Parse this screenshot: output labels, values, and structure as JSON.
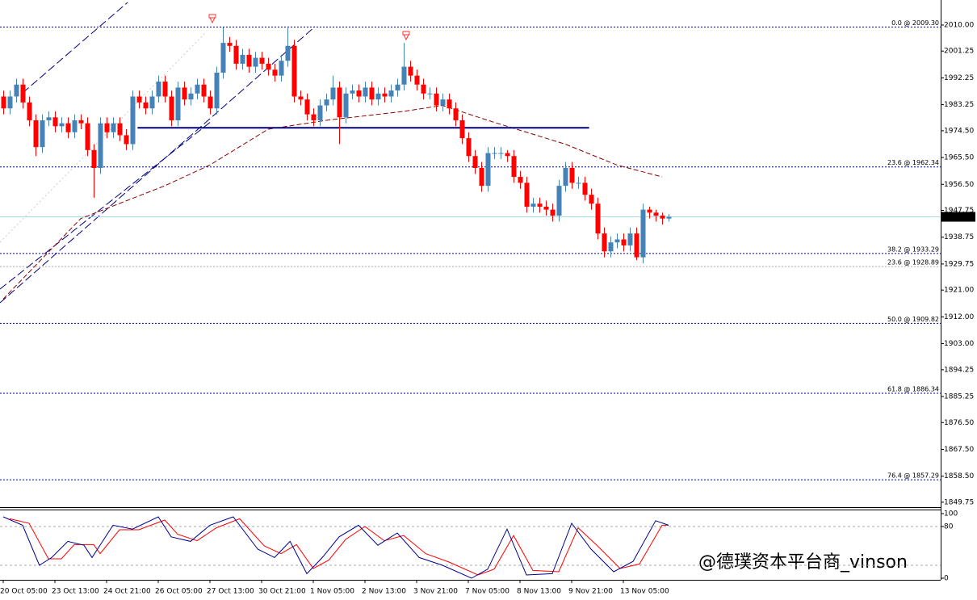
{
  "chart_data": {
    "type": "candlestick",
    "categories": [
      "20 Oct 05:00",
      null,
      null,
      null,
      null,
      null,
      null,
      null,
      "23 Oct 13:00",
      null,
      null,
      null,
      null,
      null,
      null,
      null,
      "24 Oct 21:00",
      null,
      null,
      null,
      null,
      null,
      null,
      null,
      "26 Oct 05:00",
      null,
      null,
      null,
      null,
      null,
      null,
      null,
      "27 Oct 13:00",
      null,
      null,
      null,
      null,
      null,
      null,
      null,
      "30 Oct 21:00",
      null,
      null,
      null,
      null,
      null,
      null,
      null,
      "1 Nov 05:00",
      null,
      null,
      null,
      null,
      null,
      null,
      null,
      "2 Nov 13:00",
      null,
      null,
      null,
      null,
      null,
      null,
      null,
      "3 Nov 21:00",
      null,
      null,
      null,
      null,
      null,
      null,
      null,
      "7 Nov 05:00",
      null,
      null,
      null,
      null,
      null,
      null,
      null,
      "8 Nov 13:00",
      null,
      null,
      null,
      null,
      null,
      null,
      null,
      "9 Nov 21:00",
      null,
      null,
      null,
      null,
      null,
      null,
      null,
      "13 Nov 05:00",
      null,
      null,
      null,
      null,
      null,
      null,
      null
    ],
    "open": [
      1986,
      1982,
      1986,
      1990,
      1984,
      1978,
      1969,
      1978,
      1979,
      1976,
      1977,
      1974,
      1978,
      1977,
      1968,
      1962,
      1977,
      1974,
      1977,
      1973,
      1970,
      1986,
      1984,
      1982,
      1986,
      1991,
      1986,
      1978,
      1989,
      1985,
      1987,
      1990,
      1986,
      1982,
      1994,
      2004,
      2003,
      1997,
      2000,
      1996,
      1999,
      1997,
      1995,
      1993,
      1998,
      2003,
      1986,
      1985,
      1980,
      1978,
      1983,
      1985,
      1989,
      1979,
      1987,
      1988,
      1986,
      1989,
      1985,
      1987,
      1986,
      1988,
      1990,
      1996,
      1993,
      1990,
      1987,
      1987,
      1983,
      1985,
      1982,
      1978,
      1972,
      1966,
      1962,
      1956,
      1967,
      1967,
      1967,
      1966,
      1959,
      1957,
      1949,
      1950,
      1949,
      1948,
      1946,
      1956,
      1962,
      1957,
      1957,
      1953,
      1950,
      1940,
      1934,
      1937,
      1938,
      1936,
      1940,
      1932,
      1948,
      1947,
      1946,
      1945
    ],
    "high": [
      1988,
      1988,
      1992,
      1992,
      1986,
      1980,
      1980,
      1981,
      1981,
      1979,
      1979,
      1980,
      1980,
      1979,
      1970,
      1979,
      1979,
      1979,
      1979,
      1975,
      1988,
      1988,
      1986,
      1988,
      1993,
      1993,
      1988,
      1991,
      1991,
      1989,
      1992,
      1992,
      1988,
      1996,
      2009.3,
      2006,
      2005,
      2002,
      2002,
      2001,
      2001,
      1999,
      1997,
      2000,
      2009,
      2005,
      1988,
      1987,
      1982,
      1985,
      1987,
      1993,
      1991,
      1989,
      1990,
      1990,
      1991,
      1991,
      1989,
      1989,
      1990,
      1992,
      2004,
      1998,
      1995,
      1992,
      1989,
      1989,
      1987,
      1987,
      1984,
      1980,
      1974,
      1968,
      1964,
      1969,
      1969,
      1969,
      1968,
      1968,
      1961,
      1959,
      1952,
      1952,
      1951,
      1950,
      1958,
      1964,
      1964,
      1959,
      1959,
      1955,
      1952,
      1942,
      1939,
      1940,
      1940,
      1942,
      1942,
      1950,
      1949,
      1948,
      1947,
      1946.5
    ],
    "low": [
      1980,
      1980,
      1984,
      1982,
      1976,
      1966,
      1967,
      1976,
      1974,
      1974,
      1972,
      1972,
      1975,
      1966,
      1952,
      1960,
      1972,
      1972,
      1971,
      1968,
      1968,
      1982,
      1980,
      1980,
      1984,
      1984,
      1976,
      1976,
      1983,
      1983,
      1985,
      1984,
      1980,
      1980,
      1992,
      2001,
      1995,
      1995,
      1994,
      1994,
      1995,
      1993,
      1991,
      1991,
      1996,
      1984,
      1983,
      1978,
      1976,
      1976,
      1981,
      1983,
      1970,
      1977,
      1985,
      1984,
      1984,
      1983,
      1983,
      1984,
      1984,
      1986,
      1988,
      1991,
      1988,
      1985,
      1985,
      1981,
      1981,
      1980,
      1976,
      1970,
      1964,
      1960,
      1954,
      1954,
      1965,
      1965,
      1964,
      1957,
      1955,
      1947,
      1947,
      1947,
      1946,
      1944,
      1944,
      1954,
      1955,
      1955,
      1951,
      1948,
      1938,
      1932,
      1932,
      1935,
      1934,
      1934,
      1931,
      1930,
      1945,
      1944,
      1943,
      1944
    ],
    "close": [
      1982,
      1986,
      1990,
      1984,
      1978,
      1969,
      1978,
      1979,
      1976,
      1977,
      1974,
      1978,
      1977,
      1968,
      1962,
      1977,
      1974,
      1977,
      1973,
      1970,
      1986,
      1984,
      1982,
      1986,
      1991,
      1986,
      1978,
      1989,
      1985,
      1987,
      1990,
      1986,
      1982,
      1994,
      2004,
      2003,
      1997,
      2000,
      1996,
      1999,
      1997,
      1995,
      1993,
      1998,
      2003,
      1986,
      1985,
      1980,
      1978,
      1983,
      1985,
      1989,
      1979,
      1987,
      1988,
      1986,
      1989,
      1985,
      1987,
      1986,
      1988,
      1990,
      1996,
      1993,
      1990,
      1987,
      1987,
      1983,
      1985,
      1982,
      1978,
      1972,
      1966,
      1962,
      1956,
      1967,
      1967,
      1967,
      1966,
      1959,
      1957,
      1949,
      1950,
      1949,
      1948,
      1946,
      1956,
      1962,
      1957,
      1957,
      1953,
      1950,
      1940,
      1934,
      1937,
      1938,
      1936,
      1940,
      1932,
      1948,
      1947,
      1946,
      1945,
      1945.59
    ],
    "up_color": "#4682b4",
    "down_color": "#ff0000",
    "ylim": [
      1848.1,
      2018.4
    ],
    "yticks": [
      {
        "value": 2010,
        "label": "2010.00"
      },
      {
        "value": 2001.25,
        "label": "2001.25"
      },
      {
        "value": 1992.25,
        "label": "1992.25"
      },
      {
        "value": 1983.25,
        "label": "1983.25"
      },
      {
        "value": 1974.5,
        "label": "1974.50"
      },
      {
        "value": 1965.5,
        "label": "1965.50"
      },
      {
        "value": 1956.5,
        "label": "1956.50"
      },
      {
        "value": 1947.75,
        "label": "1947.75"
      },
      {
        "value": 1938.75,
        "label": "1938.75"
      },
      {
        "value": 1929.75,
        "label": "1929.75"
      },
      {
        "value": 1921,
        "label": "1921.00"
      },
      {
        "value": 1912,
        "label": "1912.00"
      },
      {
        "value": 1903,
        "label": "1903.00"
      },
      {
        "value": 1894.25,
        "label": "1894.25"
      },
      {
        "value": 1885.25,
        "label": "1885.25"
      },
      {
        "value": 1876.5,
        "label": "1876.50"
      },
      {
        "value": 1867.5,
        "label": "1867.50"
      },
      {
        "value": 1858.5,
        "label": "1858.50"
      },
      {
        "value": 1849.75,
        "label": "1849.75"
      }
    ],
    "ma": {
      "color": "#8b0000",
      "x": [
        0,
        12,
        25,
        32,
        41,
        50,
        62,
        68,
        75,
        87,
        95,
        102
      ],
      "values": [
        1918,
        1945,
        1956,
        1963,
        1975,
        1978,
        1981,
        1983,
        1978,
        1970,
        1963,
        1959
      ]
    },
    "fib_levels": [
      {
        "label": "0.0 @ 2009.30",
        "value": 2009.3,
        "color": "#00008b"
      },
      {
        "label": "23.6 @ 1962.34",
        "value": 1962.34,
        "color": "#00008b"
      },
      {
        "label": "38.2 @ 1933.29",
        "value": 1933.29,
        "color": "#00008b"
      },
      {
        "label": "23.6 @ 1928.89",
        "value": 1928.89,
        "color": "#a9a9a9"
      },
      {
        "label": "50.0 @ 1909.82",
        "value": 1909.82,
        "color": "#00008b"
      },
      {
        "label": "61.8 @ 1886.34",
        "value": 1886.34,
        "color": "#00008b"
      },
      {
        "label": "76.4 @ 1857.29",
        "value": 1857.29,
        "color": "#00008b"
      }
    ],
    "support": {
      "value": 1975.5,
      "x": [
        20.8,
        90.7
      ],
      "color": "#000080"
    },
    "last_price": {
      "value": 1945.59,
      "label": "1945.59",
      "color": "#add8e6"
    },
    "stochastic": {
      "ylim": [
        -2.5,
        105
      ],
      "yticks": [
        100,
        80,
        0
      ],
      "levels": [
        80,
        20
      ],
      "main": {
        "color": "#00008b",
        "x": [
          0,
          3,
          5.6,
          7.5,
          10,
          12.5,
          13.75,
          17,
          20,
          24,
          26,
          29,
          32,
          35.6,
          39.4,
          42,
          44.4,
          47,
          49.4,
          52,
          55,
          58,
          61,
          64.4,
          68,
          72.5,
          75,
          78,
          81,
          85,
          88,
          91,
          94.5,
          97.5,
          101,
          103
        ],
        "values": [
          95,
          82,
          20,
          32,
          57,
          51,
          32,
          82,
          76,
          95,
          64,
          57,
          82,
          95,
          45,
          32,
          57,
          7,
          32,
          64,
          82,
          51,
          70,
          32,
          20,
          0,
          14,
          76,
          5,
          7,
          85,
          45,
          10,
          26,
          89,
          82
        ]
      },
      "signal": {
        "color": "#ff0000",
        "x": [
          1,
          4,
          7,
          9,
          11,
          14,
          15,
          18,
          21,
          25,
          27,
          30,
          33,
          36.6,
          40.4,
          43,
          45.4,
          48,
          50.4,
          53,
          56,
          59,
          62,
          65.4,
          69,
          73.5,
          76,
          79,
          82,
          86,
          89,
          92,
          95.5,
          98.5,
          102,
          103
        ],
        "values": [
          92,
          85,
          30,
          30,
          52,
          52,
          38,
          75,
          75,
          90,
          68,
          58,
          78,
          92,
          50,
          38,
          52,
          15,
          28,
          60,
          80,
          58,
          66,
          38,
          25,
          5,
          14,
          66,
          12,
          10,
          78,
          50,
          15,
          22,
          82,
          82
        ]
      }
    },
    "watermark": "@德璞资本平台商_vinson"
  }
}
